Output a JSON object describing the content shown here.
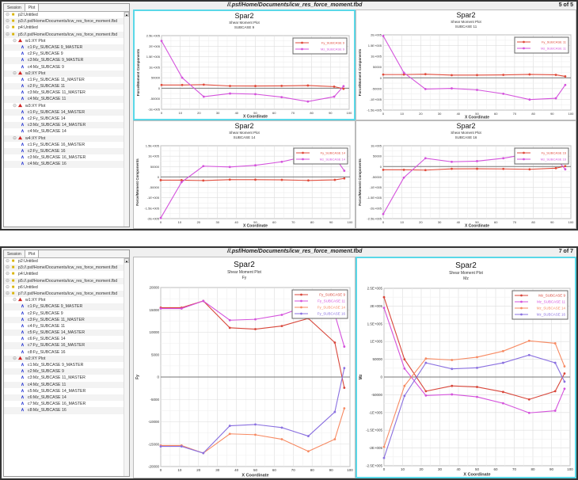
{
  "shot1": {
    "tabs": [
      "Session",
      "Plot"
    ],
    "header_path": "//.psf/Home/Documents/icw_res_force_moment.fbd",
    "page_indicator": "5 of 5",
    "tree": [
      {
        "level": 0,
        "type": "page",
        "label": "p2:Untitled"
      },
      {
        "level": 0,
        "type": "page",
        "label": "p3://.psf/Home/Documents/icw_res_force_moment.fbd"
      },
      {
        "level": 0,
        "type": "page",
        "label": "p4:Untitled"
      },
      {
        "level": 0,
        "type": "page",
        "label": "p5://.psf/Home/Documents/icw_res_force_moment.fbd"
      },
      {
        "level": 1,
        "type": "window",
        "label": "w1:XY Plot"
      },
      {
        "level": 2,
        "type": "curve",
        "label": "c1:Fy_SUBCASE 9_MASTER"
      },
      {
        "level": 2,
        "type": "curve",
        "label": "c2:Fy_SUBCASE 9"
      },
      {
        "level": 2,
        "type": "curve",
        "label": "c3:Mz_SUBCASE 9_MASTER"
      },
      {
        "level": 2,
        "type": "curve",
        "label": "c4:Mz_SUBCASE 9"
      },
      {
        "level": 1,
        "type": "window",
        "label": "w2:XY Plot"
      },
      {
        "level": 2,
        "type": "curve",
        "label": "c1:Fy_SUBCASE 11_MASTER"
      },
      {
        "level": 2,
        "type": "curve",
        "label": "c2:Fy_SUBCASE 11"
      },
      {
        "level": 2,
        "type": "curve",
        "label": "c3:Mz_SUBCASE 11_MASTER"
      },
      {
        "level": 2,
        "type": "curve",
        "label": "c4:Mz_SUBCASE 11"
      },
      {
        "level": 1,
        "type": "window",
        "label": "w3:XY Plot"
      },
      {
        "level": 2,
        "type": "curve",
        "label": "c1:Fy_SUBCASE 14_MASTER"
      },
      {
        "level": 2,
        "type": "curve",
        "label": "c2:Fy_SUBCASE 14"
      },
      {
        "level": 2,
        "type": "curve",
        "label": "c3:Mz_SUBCASE 14_MASTER"
      },
      {
        "level": 2,
        "type": "curve",
        "label": "c4:Mz_SUBCASE 14"
      },
      {
        "level": 1,
        "type": "window",
        "label": "w4:XY Plot"
      },
      {
        "level": 2,
        "type": "curve",
        "label": "c1:Fy_SUBCASE 16_MASTER"
      },
      {
        "level": 2,
        "type": "curve",
        "label": "c2:Fy_SUBCASE 16"
      },
      {
        "level": 2,
        "type": "curve",
        "label": "c3:Mz_SUBCASE 16_MASTER"
      },
      {
        "level": 2,
        "type": "curve",
        "label": "c4:Mz_SUBCASE 16"
      }
    ]
  },
  "shot2": {
    "tabs": [
      "Session",
      "Plot"
    ],
    "header_path": "//.psf/Home/Documents/icw_res_force_moment.fbd",
    "page_indicator": "7 of 7",
    "tree": [
      {
        "level": 0,
        "type": "page",
        "label": "p2:Untitled"
      },
      {
        "level": 0,
        "type": "page",
        "label": "p3://.psf/Home/Documents/icw_res_force_moment.fbd"
      },
      {
        "level": 0,
        "type": "page",
        "label": "p4:Untitled"
      },
      {
        "level": 0,
        "type": "page",
        "label": "p5://.psf/Home/Documents/icw_res_force_moment.fbd"
      },
      {
        "level": 0,
        "type": "page",
        "label": "p6:Untitled"
      },
      {
        "level": 0,
        "type": "page",
        "label": "p7://.psf/Home/Documents/icw_res_force_moment.fbd"
      },
      {
        "level": 1,
        "type": "window",
        "label": "w1:XY Plot"
      },
      {
        "level": 2,
        "type": "curve",
        "label": "c1:Fy_SUBCASE 9_MASTER"
      },
      {
        "level": 2,
        "type": "curve",
        "label": "c2:Fy_SUBCASE 9"
      },
      {
        "level": 2,
        "type": "curve",
        "label": "c3:Fy_SUBCASE 11_MASTER"
      },
      {
        "level": 2,
        "type": "curve",
        "label": "c4:Fy_SUBCASE 11"
      },
      {
        "level": 2,
        "type": "curve",
        "label": "c5:Fy_SUBCASE 14_MASTER"
      },
      {
        "level": 2,
        "type": "curve",
        "label": "c6:Fy_SUBCASE 14"
      },
      {
        "level": 2,
        "type": "curve",
        "label": "c7:Fy_SUBCASE 16_MASTER"
      },
      {
        "level": 2,
        "type": "curve",
        "label": "c8:Fy_SUBCASE 16"
      },
      {
        "level": 1,
        "type": "window",
        "label": "w2:XY Plot"
      },
      {
        "level": 2,
        "type": "curve",
        "label": "c1:Mz_SUBCASE 9_MASTER"
      },
      {
        "level": 2,
        "type": "curve",
        "label": "c2:Mz_SUBCASE 9"
      },
      {
        "level": 2,
        "type": "curve",
        "label": "c3:Mz_SUBCASE 11_MASTER"
      },
      {
        "level": 2,
        "type": "curve",
        "label": "c4:Mz_SUBCASE 11"
      },
      {
        "level": 2,
        "type": "curve",
        "label": "c5:Mz_SUBCASE 14_MASTER"
      },
      {
        "level": 2,
        "type": "curve",
        "label": "c6:Mz_SUBCASE 14"
      },
      {
        "level": 2,
        "type": "curve",
        "label": "c7:Mz_SUBCASE 16_MASTER"
      },
      {
        "level": 2,
        "type": "curve",
        "label": "c8:Mz_SUBCASE 16"
      }
    ]
  },
  "chart_data": [
    {
      "type": "line",
      "title": "Spar2",
      "subtitle": "Shear Moment Plot",
      "subtitle2": "SUBCASE 9",
      "xlabel": "X Coordinate",
      "ylabel": "Force/Moment Components",
      "xlim": [
        0,
        100
      ],
      "ylim": [
        -100000,
        250000
      ],
      "grid": true,
      "legend": "top-right",
      "selected": true,
      "xticks": [
        "0",
        "10",
        "20",
        "30",
        "40",
        "50",
        "60",
        "70",
        "80",
        "90",
        "100"
      ],
      "yticks": [
        {
          "v": 250000,
          "label": "2.5E+005"
        },
        {
          "v": 200000,
          "label": "2E+005"
        },
        {
          "v": 150000,
          "label": "1.5E+005"
        },
        {
          "v": 100000,
          "label": "1E+005"
        },
        {
          "v": 50000,
          "label": "50000"
        },
        {
          "v": 0,
          "label": "0"
        },
        {
          "v": -50000,
          "label": "-50000"
        },
        {
          "v": -100000,
          "label": "-1E+005"
        }
      ],
      "x": [
        0,
        11,
        22.5,
        36.5,
        50,
        64,
        78,
        92,
        97
      ],
      "series": [
        {
          "name": "Fy_SUBCASE 9",
          "color": "#e04a3a",
          "y": [
            15500,
            15500,
            17000,
            11000,
            10700,
            11400,
            13100,
            7700,
            -2400
          ]
        },
        {
          "name": "Mz_SUBCASE 9",
          "color": "#d452dc",
          "y": [
            225000,
            50000,
            -40000,
            -25000,
            -28000,
            -42000,
            -63000,
            -40000,
            10000
          ]
        }
      ]
    },
    {
      "type": "line",
      "title": "Spar2",
      "subtitle": "Shear Moment Plot",
      "subtitle2": "SUBCASE 11",
      "xlabel": "X Coordinate",
      "ylabel": "Force/Moment Components",
      "xlim": [
        0,
        100
      ],
      "ylim": [
        -150000,
        200000
      ],
      "grid": true,
      "legend": "top-right",
      "xticks": [
        "0",
        "10",
        "20",
        "30",
        "40",
        "50",
        "60",
        "70",
        "80",
        "90",
        "100"
      ],
      "yticks": [
        {
          "v": 200000,
          "label": "2E+005"
        },
        {
          "v": 150000,
          "label": "1.5E+005"
        },
        {
          "v": 100000,
          "label": "1E+005"
        },
        {
          "v": 50000,
          "label": "50000"
        },
        {
          "v": 0,
          "label": "0"
        },
        {
          "v": -50000,
          "label": "-50000"
        },
        {
          "v": -100000,
          "label": "-1E+005"
        },
        {
          "v": -150000,
          "label": "-1.5E+005"
        }
      ],
      "x": [
        0,
        11,
        22.5,
        36.5,
        50,
        64,
        78,
        92,
        97
      ],
      "series": [
        {
          "name": "Fy_SUBCASE 11",
          "color": "#e04a3a",
          "y": [
            15300,
            15300,
            17000,
            12700,
            12900,
            13900,
            16000,
            14000,
            6800
          ]
        },
        {
          "name": "Mz_SUBCASE 11",
          "color": "#d452dc",
          "y": [
            195000,
            24000,
            -52000,
            -49000,
            -56000,
            -74000,
            -101000,
            -95000,
            -33000
          ]
        }
      ]
    },
    {
      "type": "line",
      "title": "Spar2",
      "subtitle": "Shear Moment Plot",
      "subtitle2": "SUBCASE 14",
      "xlabel": "X Coordinate",
      "ylabel": "Force/Moment Components",
      "xlim": [
        0,
        100
      ],
      "ylim": [
        -200000,
        150000
      ],
      "grid": true,
      "legend": "top-right",
      "xticks": [
        "0",
        "10",
        "20",
        "30",
        "40",
        "50",
        "60",
        "70",
        "80",
        "90",
        "100"
      ],
      "yticks": [
        {
          "v": 150000,
          "label": "1.5E+005"
        },
        {
          "v": 100000,
          "label": "1E+005"
        },
        {
          "v": 50000,
          "label": "50000"
        },
        {
          "v": 0,
          "label": "0"
        },
        {
          "v": -50000,
          "label": "-50000"
        },
        {
          "v": -100000,
          "label": "-1E+005"
        },
        {
          "v": -150000,
          "label": "-1.5E+005"
        },
        {
          "v": -200000,
          "label": "-2E+005"
        }
      ],
      "x": [
        0,
        11,
        22.5,
        36.5,
        50,
        64,
        78,
        92,
        97
      ],
      "series": [
        {
          "name": "Fy_SUBCASE 14",
          "color": "#e04a3a",
          "y": [
            -15300,
            -15300,
            -17000,
            -12700,
            -12900,
            -13900,
            -16600,
            -13900,
            -7000
          ]
        },
        {
          "name": "Mz_SUBCASE 14",
          "color": "#d452dc",
          "y": [
            -197000,
            -25000,
            52000,
            48000,
            56000,
            73000,
            102000,
            95000,
            30000
          ]
        }
      ]
    },
    {
      "type": "line",
      "title": "Spar2",
      "subtitle": "Shear Moment Plot",
      "subtitle2": "SUBCASE 16",
      "xlabel": "X Coordinate",
      "ylabel": "Force/Moment Components",
      "xlim": [
        0,
        100
      ],
      "ylim": [
        -250000,
        100000
      ],
      "grid": true,
      "legend": "top-right",
      "xticks": [
        "0",
        "10",
        "20",
        "30",
        "40",
        "50",
        "60",
        "70",
        "80",
        "90",
        "100"
      ],
      "yticks": [
        {
          "v": 100000,
          "label": "1E+005"
        },
        {
          "v": 50000,
          "label": "50000"
        },
        {
          "v": 0,
          "label": "0"
        },
        {
          "v": -50000,
          "label": "-50000"
        },
        {
          "v": -100000,
          "label": "-1E+005"
        },
        {
          "v": -150000,
          "label": "-1.5E+005"
        },
        {
          "v": -200000,
          "label": "-2E+005"
        },
        {
          "v": -250000,
          "label": "-2.5E+005"
        }
      ],
      "x": [
        0,
        11,
        22.5,
        36.5,
        50,
        64,
        78,
        92,
        97
      ],
      "series": [
        {
          "name": "Fy_SUBCASE 16",
          "color": "#e04a3a",
          "y": [
            -15500,
            -15500,
            -17000,
            -10900,
            -10600,
            -11300,
            -13200,
            -7800,
            2000
          ]
        },
        {
          "name": "Mz_SUBCASE 16",
          "color": "#d452dc",
          "y": [
            -228000,
            -53000,
            40000,
            23000,
            26000,
            40000,
            62000,
            40000,
            -13000
          ]
        }
      ]
    },
    {
      "type": "line",
      "title": "Spar2",
      "subtitle": "Shear Moment Plot",
      "subtitle2": "Fy",
      "xlabel": "X Coordinate",
      "ylabel": "Fy",
      "xlim": [
        0,
        100
      ],
      "ylim": [
        -20000,
        20000
      ],
      "grid": true,
      "legend": "top-right",
      "xticks": [
        "0",
        "10",
        "20",
        "30",
        "40",
        "50",
        "60",
        "70",
        "80",
        "90",
        "100"
      ],
      "yticks": [
        {
          "v": 20000,
          "label": "20000"
        },
        {
          "v": 15000,
          "label": "15000"
        },
        {
          "v": 10000,
          "label": "10000"
        },
        {
          "v": 5000,
          "label": "5000"
        },
        {
          "v": 0,
          "label": "0"
        },
        {
          "v": -5000,
          "label": "-5000"
        },
        {
          "v": -10000,
          "label": "-10000"
        },
        {
          "v": -15000,
          "label": "-15000"
        },
        {
          "v": -20000,
          "label": "-20000"
        }
      ],
      "x": [
        0,
        11,
        22.5,
        36.5,
        50,
        64,
        78,
        92,
        97
      ],
      "series": [
        {
          "name": "Fy_SUBCASE 9",
          "color": "#d8463a",
          "y": [
            15500,
            15500,
            17000,
            11000,
            10700,
            11400,
            13100,
            7700,
            -2400
          ]
        },
        {
          "name": "Fy_SUBCASE 11",
          "color": "#d452dc",
          "y": [
            15300,
            15300,
            17000,
            12700,
            12900,
            13900,
            16000,
            14000,
            6800
          ]
        },
        {
          "name": "Fy_SUBCASE 14",
          "color": "#f78a62",
          "y": [
            -15300,
            -15300,
            -17000,
            -12700,
            -12900,
            -13900,
            -16600,
            -13900,
            -7000
          ]
        },
        {
          "name": "Fy_SUBCASE 16",
          "color": "#8a70e0",
          "y": [
            -15500,
            -15500,
            -17000,
            -10900,
            -10600,
            -11300,
            -13200,
            -7800,
            2000
          ]
        }
      ]
    },
    {
      "type": "line",
      "title": "Spar2",
      "subtitle": "Shear Moment Plot",
      "subtitle2": "Mz",
      "xlabel": "X Coordinate",
      "ylabel": "Mz",
      "xlim": [
        0,
        100
      ],
      "ylim": [
        -250000,
        250000
      ],
      "grid": true,
      "legend": "top-right",
      "selected": true,
      "xticks": [
        "0",
        "10",
        "20",
        "30",
        "40",
        "50",
        "60",
        "70",
        "80",
        "90",
        "100"
      ],
      "yticks": [
        {
          "v": 250000,
          "label": "2.5E+005"
        },
        {
          "v": 200000,
          "label": "2E+005"
        },
        {
          "v": 150000,
          "label": "1.5E+005"
        },
        {
          "v": 100000,
          "label": "1E+005"
        },
        {
          "v": 50000,
          "label": "50000"
        },
        {
          "v": 0,
          "label": "0"
        },
        {
          "v": -50000,
          "label": "-50000"
        },
        {
          "v": -100000,
          "label": "-1E+005"
        },
        {
          "v": -150000,
          "label": "-1.5E+005"
        },
        {
          "v": -200000,
          "label": "-2E+005"
        },
        {
          "v": -250000,
          "label": "-2.5E+005"
        }
      ],
      "x": [
        0,
        11,
        22.5,
        36.5,
        50,
        64,
        78,
        92,
        97
      ],
      "series": [
        {
          "name": "Mz_SUBCASE 9",
          "color": "#d8463a",
          "y": [
            225000,
            50000,
            -40000,
            -25000,
            -28000,
            -42000,
            -63000,
            -40000,
            10000
          ]
        },
        {
          "name": "Mz_SUBCASE 11",
          "color": "#d452dc",
          "y": [
            195000,
            24000,
            -52000,
            -49000,
            -56000,
            -74000,
            -101000,
            -95000,
            -33000
          ]
        },
        {
          "name": "Mz_SUBCASE 14",
          "color": "#f78a62",
          "y": [
            -197000,
            -25000,
            52000,
            48000,
            56000,
            73000,
            102000,
            95000,
            30000
          ]
        },
        {
          "name": "Mz_SUBCASE 16",
          "color": "#8a70e0",
          "y": [
            -228000,
            -53000,
            40000,
            23000,
            26000,
            40000,
            62000,
            40000,
            -13000
          ]
        }
      ]
    }
  ]
}
